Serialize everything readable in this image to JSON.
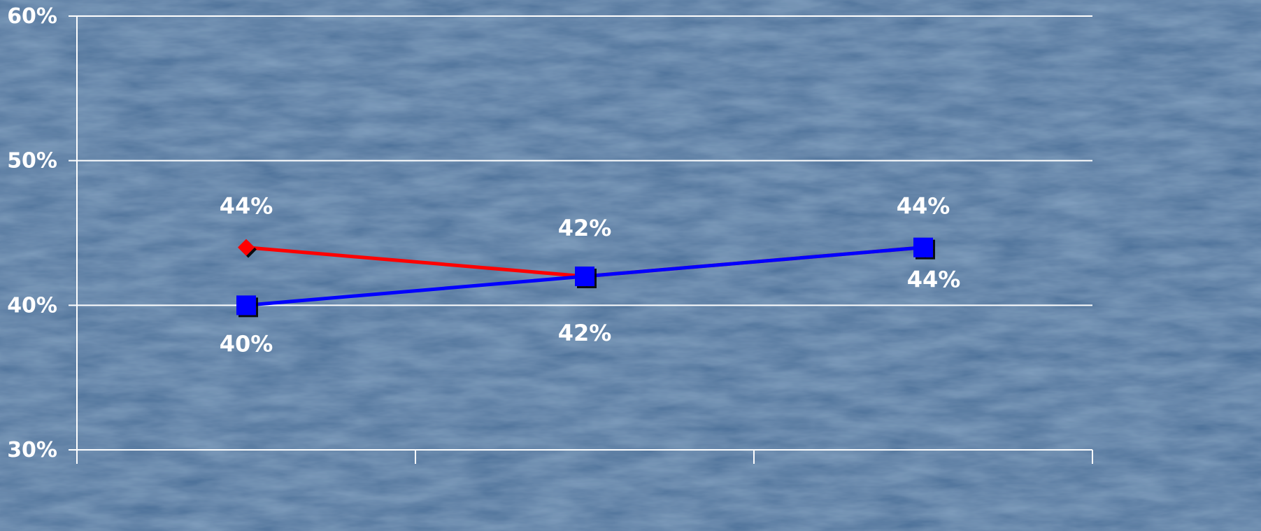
{
  "chart_data": {
    "type": "line",
    "categories": [
      "",
      "",
      ""
    ],
    "series": [
      {
        "color": "#ff0000",
        "marker": "diamond",
        "values": [
          44,
          42,
          44
        ],
        "labels": [
          "44%",
          "42%",
          "44%"
        ]
      },
      {
        "color": "#0000ff",
        "marker": "square",
        "values": [
          40,
          42,
          44
        ],
        "labels": [
          "40%",
          "42%",
          "44%"
        ]
      }
    ],
    "ylim": [
      30,
      60
    ],
    "yticks": [
      30,
      40,
      50,
      60
    ],
    "ytick_labels": [
      "30%",
      "40%",
      "50%",
      "60%"
    ],
    "grid": true,
    "title": "",
    "xlabel": "",
    "ylabel": "",
    "colors": {
      "background": "#4f739b",
      "gridline": "#ffffff",
      "text": "#ffffff"
    }
  }
}
